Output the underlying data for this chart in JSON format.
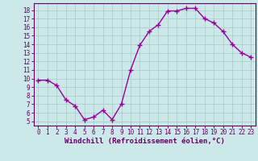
{
  "x": [
    0,
    1,
    2,
    3,
    4,
    5,
    6,
    7,
    8,
    9,
    10,
    11,
    12,
    13,
    14,
    15,
    16,
    17,
    18,
    19,
    20,
    21,
    22,
    23
  ],
  "y": [
    9.8,
    9.8,
    9.2,
    7.5,
    6.8,
    5.2,
    5.5,
    6.3,
    5.2,
    7.0,
    11.0,
    13.9,
    15.5,
    16.3,
    17.9,
    17.9,
    18.2,
    18.2,
    17.0,
    16.5,
    15.5,
    14.0,
    13.0,
    12.5
  ],
  "line_color": "#990099",
  "marker": "+",
  "marker_size": 4,
  "bg_color": "#cce8e8",
  "grid_color": "#aacece",
  "xlabel": "Windchill (Refroidissement éolien,°C)",
  "ylim": [
    4.5,
    18.8
  ],
  "xlim": [
    -0.5,
    23.5
  ],
  "yticks": [
    5,
    6,
    7,
    8,
    9,
    10,
    11,
    12,
    13,
    14,
    15,
    16,
    17,
    18
  ],
  "xticks": [
    0,
    1,
    2,
    3,
    4,
    5,
    6,
    7,
    8,
    9,
    10,
    11,
    12,
    13,
    14,
    15,
    16,
    17,
    18,
    19,
    20,
    21,
    22,
    23
  ],
  "tick_color": "#660066",
  "spine_color": "#660066",
  "label_color": "#660066",
  "linewidth": 1.0,
  "markeredgewidth": 1.0
}
